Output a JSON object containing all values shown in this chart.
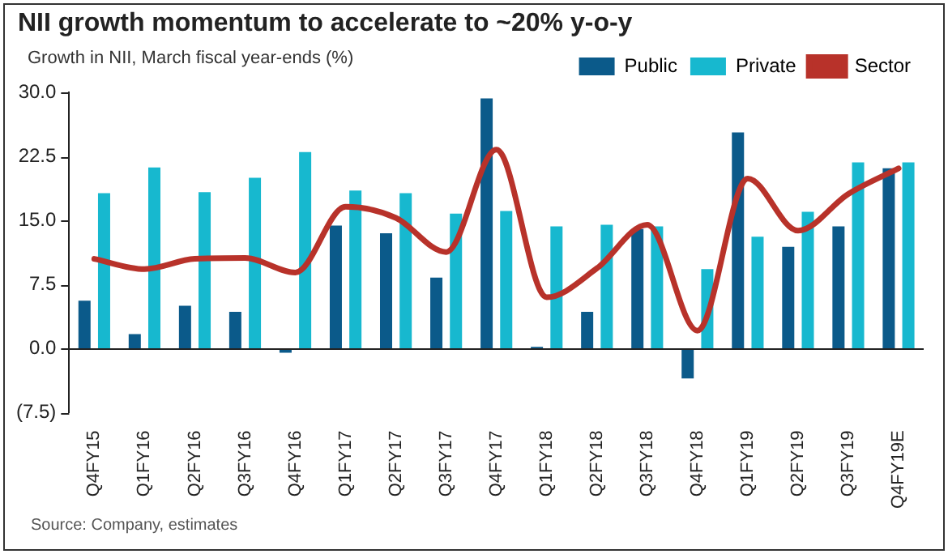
{
  "chart_data": {
    "type": "bar",
    "title": "NII growth momentum to accelerate to ~20% y-o-y",
    "subtitle": "Growth in NII, March fiscal year-ends (%)",
    "categories": [
      "Q4FY15",
      "Q1FY16",
      "Q2FY16",
      "Q3FY16",
      "Q4FY16",
      "Q1FY17",
      "Q2FY17",
      "Q3FY17",
      "Q4FY17",
      "Q1FY18",
      "Q2FY18",
      "Q3FY18",
      "Q4FY18",
      "Q1FY19",
      "Q2FY19",
      "Q3FY19",
      "Q4FY19E"
    ],
    "series": [
      {
        "name": "Public",
        "color": "#0b5a8a",
        "values": [
          5.6,
          1.7,
          5.0,
          4.3,
          -0.5,
          14.4,
          13.5,
          8.3,
          29.3,
          0.2,
          4.3,
          14.0,
          -3.5,
          25.3,
          11.9,
          14.3,
          21.1
        ]
      },
      {
        "name": "Private",
        "color": "#17b8cf",
        "values": [
          18.2,
          21.2,
          18.3,
          20.0,
          23.0,
          18.5,
          18.2,
          15.8,
          16.1,
          14.3,
          14.5,
          14.3,
          9.3,
          13.1,
          16.0,
          21.8,
          21.8
        ]
      },
      {
        "name": "Sector",
        "type": "line",
        "color": "#b8322a",
        "values": [
          10.5,
          9.3,
          10.5,
          10.6,
          8.9,
          16.6,
          15.3,
          11.3,
          23.3,
          6.0,
          9.4,
          14.5,
          2.1,
          19.9,
          13.8,
          18.1,
          21.1
        ]
      }
    ],
    "ylim": [
      -7.5,
      30
    ],
    "yticks": [
      {
        "value": -7.5,
        "label": "(7.5)"
      },
      {
        "value": 0,
        "label": "0.0"
      },
      {
        "value": 7.5,
        "label": "7.5"
      },
      {
        "value": 15,
        "label": "15.0"
      },
      {
        "value": 22.5,
        "label": "22.5"
      },
      {
        "value": 30,
        "label": "30.0"
      }
    ],
    "ref_lines": [
      {
        "axis": "y",
        "value": 0,
        "color": "#222222"
      }
    ],
    "grid": false,
    "legend": "top right",
    "marker": "none",
    "annotations": [
      "Source: Company, estimates"
    ]
  }
}
